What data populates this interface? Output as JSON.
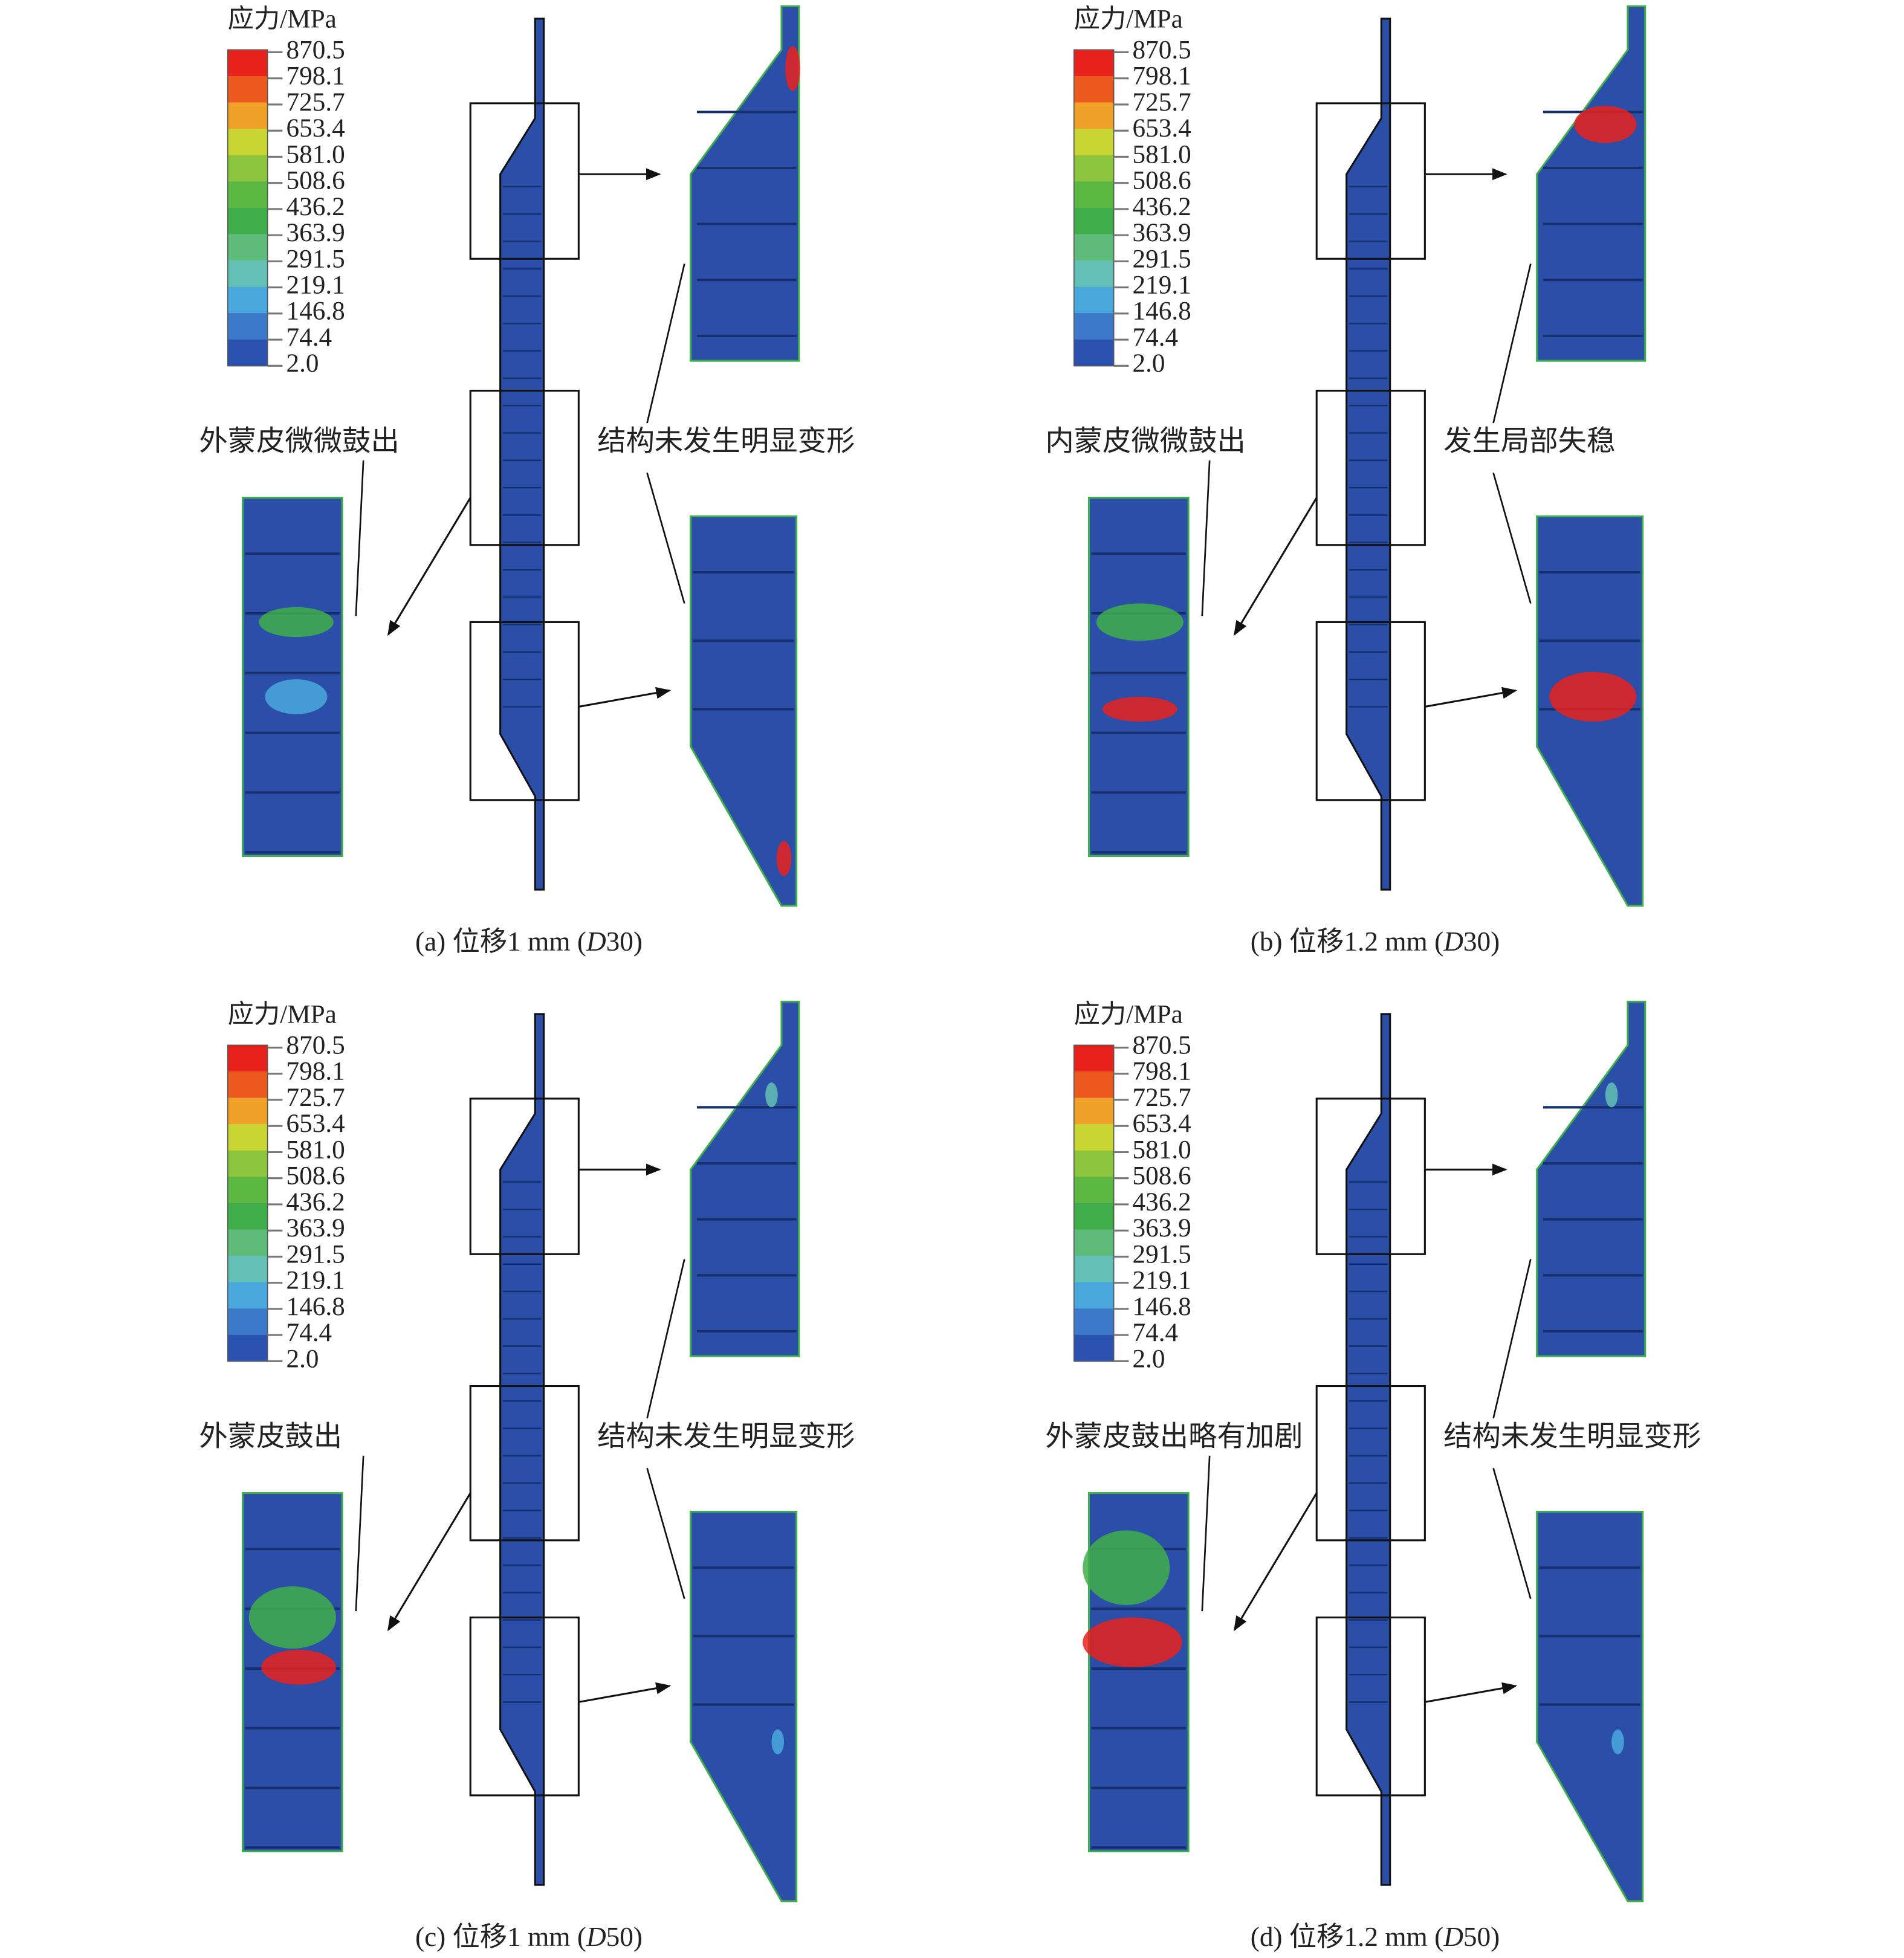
{
  "legend": {
    "title": "应力/MPa",
    "labels": [
      "870.5",
      "798.1",
      "725.7",
      "653.4",
      "581.0",
      "508.6",
      "436.2",
      "363.9",
      "291.5",
      "219.1",
      "146.8",
      "74.4",
      "2.0"
    ],
    "colors": [
      "#e8211c",
      "#ec5a20",
      "#f0a12a",
      "#c9d634",
      "#8cc63e",
      "#5db743",
      "#3fae4a",
      "#5fbb7a",
      "#62c0b4",
      "#4aa8dc",
      "#3b78c8",
      "#2b52b0"
    ]
  },
  "panels": [
    {
      "annotations": [
        "外蒙皮微微鼓出",
        "结构未发生明显变形"
      ],
      "caption": {
        "prefix": "(a) 位移1 mm (",
        "italic": "D",
        "suffix": "30)"
      }
    },
    {
      "annotations": [
        "内蒙皮微微鼓出",
        "发生局部失稳"
      ],
      "caption": {
        "prefix": "(b) 位移1.2 mm (",
        "italic": "D",
        "suffix": "30)"
      }
    },
    {
      "annotations": [
        "外蒙皮鼓出",
        "结构未发生明显变形"
      ],
      "caption": {
        "prefix": "(c) 位移1 mm (",
        "italic": "D",
        "suffix": "50)"
      }
    },
    {
      "annotations": [
        "外蒙皮鼓出略有加剧",
        "结构未发生明显变形"
      ],
      "caption": {
        "prefix": "(d) 位移1.2 mm (",
        "italic": "D",
        "suffix": "50)"
      }
    }
  ]
}
